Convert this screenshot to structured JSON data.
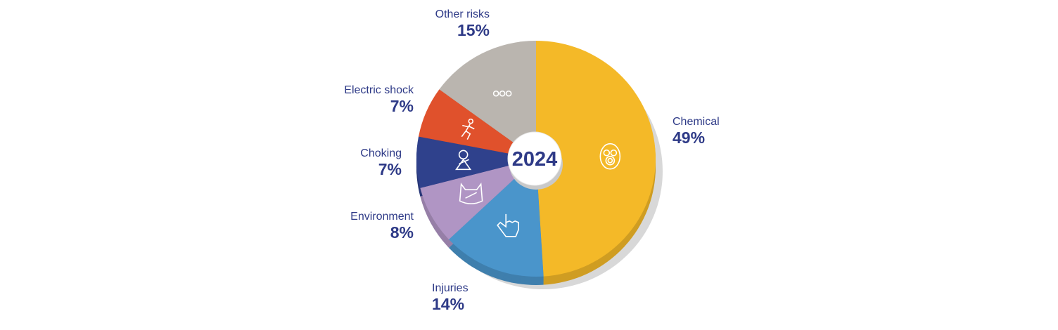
{
  "chart_data": {
    "type": "pie",
    "title": "",
    "center_label": "2024",
    "start": "top",
    "direction": "clockwise",
    "slices": [
      {
        "label": "Chemical",
        "value": 49,
        "display": "49%",
        "color": "#f4b928",
        "icon": "gas-mask-icon"
      },
      {
        "label": "Injuries",
        "value": 14,
        "display": "14%",
        "color": "#4a95cb",
        "icon": "pointing-hand-icon"
      },
      {
        "label": "Environment",
        "value": 8,
        "display": "8%",
        "color": "#b095c4",
        "icon": "plastic-bag-icon"
      },
      {
        "label": "Choking",
        "value": 7,
        "display": "7%",
        "color": "#2f418c",
        "icon": "choking-person-icon"
      },
      {
        "label": "Electric shock",
        "value": 7,
        "display": "7%",
        "color": "#e0512c",
        "icon": "electrocuted-person-icon"
      },
      {
        "label": "Other risks",
        "value": 15,
        "display": "15%",
        "color": "#bab5af",
        "icon": "three-dots-icon"
      }
    ]
  }
}
